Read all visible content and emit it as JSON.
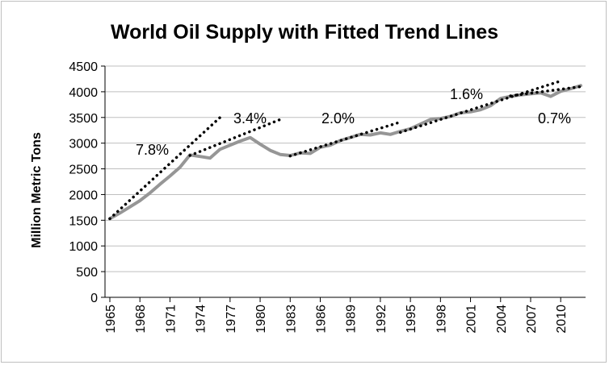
{
  "chart_data": {
    "type": "line",
    "title": "World Oil Supply with Fitted Trend Lines",
    "xlabel": "",
    "ylabel": "Million Metric Tons",
    "ylim": [
      0,
      4500
    ],
    "yticks": [
      0,
      500,
      1000,
      1500,
      2000,
      2500,
      3000,
      3500,
      4000,
      4500
    ],
    "xlim": [
      1965,
      2012
    ],
    "xticks": [
      1965,
      1968,
      1971,
      1974,
      1977,
      1980,
      1983,
      1986,
      1989,
      1992,
      1995,
      1998,
      2001,
      2004,
      2007,
      2010
    ],
    "grid": "horizontal",
    "legend": "none",
    "colors": {
      "series": "#969696",
      "trend": "#000000",
      "grid": "#bfbfbf"
    },
    "series": [
      {
        "x": [
          1965,
          1966,
          1967,
          1968,
          1969,
          1970,
          1971,
          1972,
          1973,
          1974,
          1975,
          1976,
          1977,
          1978,
          1979,
          1980,
          1981,
          1982,
          1983,
          1984,
          1985,
          1986,
          1987,
          1988,
          1989,
          1990,
          1991,
          1992,
          1993,
          1994,
          1995,
          1996,
          1997,
          1998,
          1999,
          2000,
          2001,
          2002,
          2003,
          2004,
          2005,
          2006,
          2007,
          2008,
          2009,
          2010,
          2011,
          2012
        ],
        "values": [
          1530,
          1640,
          1760,
          1880,
          2030,
          2200,
          2360,
          2530,
          2770,
          2740,
          2710,
          2880,
          2960,
          3040,
          3110,
          2980,
          2860,
          2780,
          2760,
          2810,
          2800,
          2920,
          2960,
          3050,
          3110,
          3170,
          3160,
          3200,
          3170,
          3230,
          3280,
          3370,
          3460,
          3480,
          3520,
          3590,
          3610,
          3650,
          3730,
          3870,
          3910,
          3940,
          3960,
          3980,
          3910,
          4010,
          4060,
          4120
        ]
      }
    ],
    "trend_lines": [
      {
        "label": "7.8%",
        "x": [
          1965,
          1976
        ],
        "values": [
          1530,
          3500
        ]
      },
      {
        "label": "3.4%",
        "x": [
          1973,
          1982
        ],
        "values": [
          2760,
          3460
        ]
      },
      {
        "label": "2.0%",
        "x": [
          1983,
          1994
        ],
        "values": [
          2750,
          3410
        ]
      },
      {
        "label": "1.6%",
        "x": [
          1994,
          2010
        ],
        "values": [
          3210,
          4210
        ]
      },
      {
        "label": "0.7%",
        "x": [
          2005,
          2012
        ],
        "values": [
          3920,
          4100
        ]
      }
    ]
  }
}
